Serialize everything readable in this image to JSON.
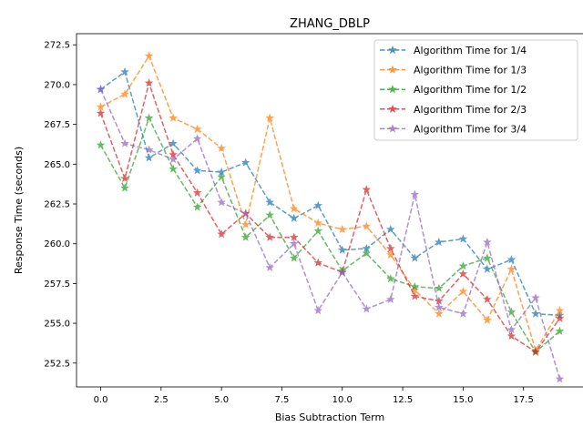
{
  "chart_data": {
    "type": "line",
    "title": "ZHANG_DBLP",
    "xlabel": "Bias Subtraction Term",
    "ylabel": "Response Time (seconds)",
    "xlim": [
      -1.0,
      20.0
    ],
    "ylim": [
      251.0,
      273.2
    ],
    "x_ticks": [
      0.0,
      2.5,
      5.0,
      7.5,
      10.0,
      12.5,
      15.0,
      17.5
    ],
    "x_tick_labels": [
      "0.0",
      "2.5",
      "5.0",
      "7.5",
      "10.0",
      "12.5",
      "15.0",
      "17.5"
    ],
    "y_ticks": [
      252.5,
      255.0,
      257.5,
      260.0,
      262.5,
      265.0,
      267.5,
      270.0,
      272.5
    ],
    "y_tick_labels": [
      "252.5",
      "255.0",
      "257.5",
      "260.0",
      "262.5",
      "265.0",
      "267.5",
      "270.0",
      "272.5"
    ],
    "grid": false,
    "legend_position": "top-right",
    "marker": "star",
    "line_style": "dashed",
    "x": [
      0,
      1,
      2,
      3,
      4,
      5,
      6,
      7,
      8,
      9,
      10,
      11,
      12,
      13,
      14,
      15,
      16,
      17,
      18,
      19
    ],
    "series": [
      {
        "name": "Algorithm Time for 1/4",
        "color": "#1f77b4",
        "values": [
          269.7,
          270.8,
          265.4,
          266.3,
          264.6,
          264.5,
          265.1,
          262.6,
          261.6,
          262.4,
          259.6,
          259.7,
          260.9,
          259.1,
          260.1,
          260.3,
          258.4,
          259.0,
          255.6,
          255.5
        ]
      },
      {
        "name": "Algorithm Time for 1/3",
        "color": "#ff7f0e",
        "values": [
          268.6,
          269.4,
          271.8,
          267.9,
          267.2,
          266.0,
          261.2,
          267.9,
          262.2,
          261.3,
          260.9,
          261.1,
          259.3,
          257.1,
          255.6,
          257.0,
          255.2,
          258.4,
          253.3,
          255.8
        ]
      },
      {
        "name": "Algorithm Time for 1/2",
        "color": "#2ca02c",
        "values": [
          266.2,
          263.5,
          267.9,
          264.7,
          262.3,
          264.2,
          260.4,
          261.8,
          259.1,
          260.8,
          258.3,
          259.4,
          257.8,
          257.3,
          257.2,
          258.6,
          259.1,
          255.7,
          253.2,
          254.5
        ]
      },
      {
        "name": "Algorithm Time for 2/3",
        "color": "#d62728",
        "values": [
          268.2,
          264.1,
          270.1,
          265.6,
          263.2,
          260.6,
          261.9,
          260.4,
          260.4,
          258.8,
          258.2,
          263.4,
          259.7,
          256.7,
          256.4,
          258.1,
          256.5,
          254.2,
          253.2,
          255.3
        ]
      },
      {
        "name": "Algorithm Time for 3/4",
        "color": "#9467bd",
        "values": [
          269.7,
          266.3,
          265.9,
          265.3,
          266.6,
          262.6,
          261.9,
          258.5,
          260.0,
          255.8,
          258.2,
          255.9,
          256.5,
          263.1,
          256.0,
          255.6,
          260.1,
          254.6,
          256.6,
          251.5
        ]
      }
    ]
  }
}
